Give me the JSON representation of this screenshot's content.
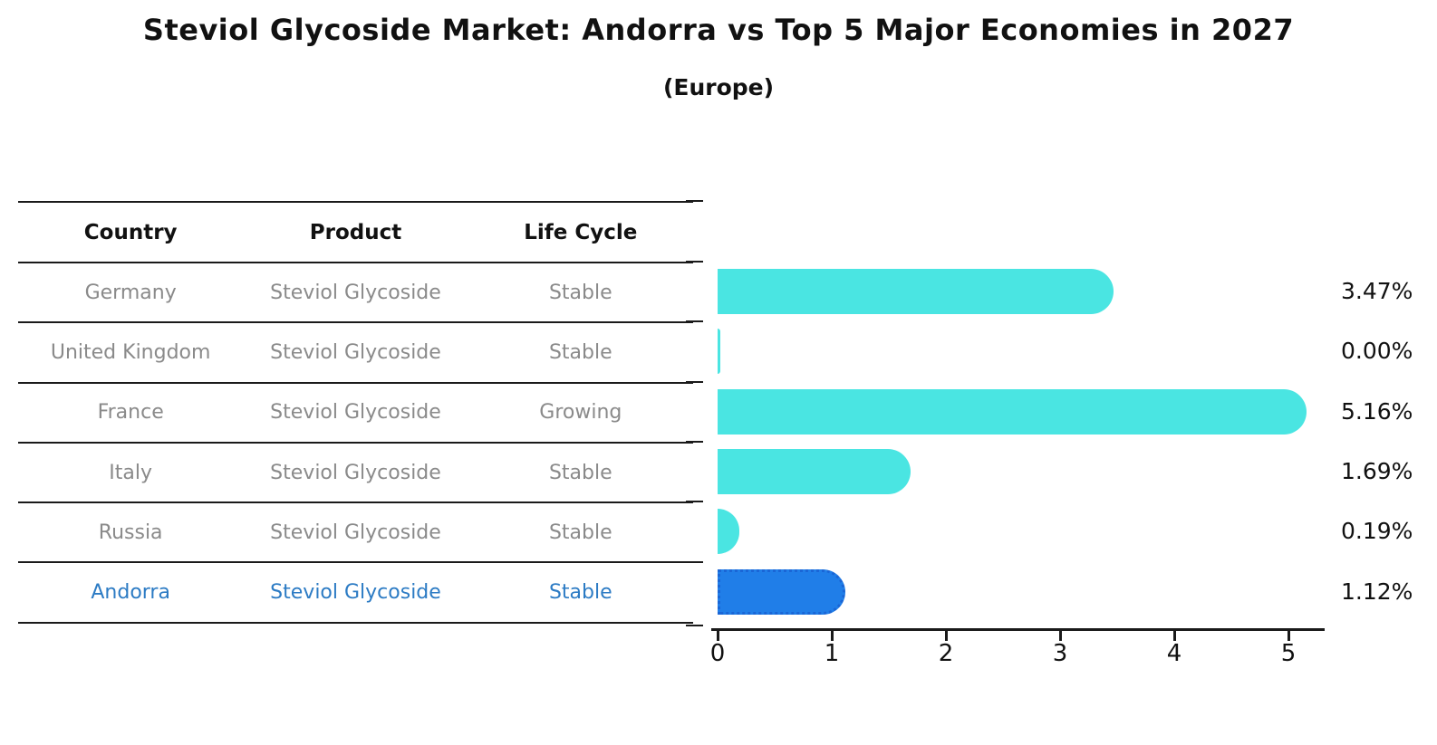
{
  "title": "Steviol Glycoside Market: Andorra vs Top 5 Major Economies in 2027",
  "subtitle": "(Europe)",
  "table": {
    "headers": [
      "Country",
      "Product",
      "Life Cycle"
    ],
    "rows": [
      {
        "country": "Germany",
        "product": "Steviol Glycoside",
        "life_cycle": "Stable",
        "highlighted": false
      },
      {
        "country": "United Kingdom",
        "product": "Steviol Glycoside",
        "life_cycle": "Stable",
        "highlighted": false
      },
      {
        "country": "France",
        "product": "Steviol Glycoside",
        "life_cycle": "Growing",
        "highlighted": false
      },
      {
        "country": "Italy",
        "product": "Steviol Glycoside",
        "life_cycle": "Stable",
        "highlighted": false
      },
      {
        "country": "Russia",
        "product": "Steviol Glycoside",
        "life_cycle": "Stable",
        "highlighted": false
      },
      {
        "country": "Andorra",
        "product": "Steviol Glycoside",
        "life_cycle": "Stable",
        "highlighted": true
      }
    ]
  },
  "chart_data": {
    "type": "bar",
    "orientation": "horizontal",
    "title": "Steviol Glycoside Market: Andorra vs Top 5 Major Economies in 2027",
    "subtitle": "(Europe)",
    "categories": [
      "Germany",
      "United Kingdom",
      "France",
      "Italy",
      "Russia",
      "Andorra"
    ],
    "values": [
      3.47,
      0.0,
      5.16,
      1.69,
      0.19,
      1.12
    ],
    "value_labels": [
      "3.47%",
      "0.00%",
      "5.16%",
      "1.69%",
      "0.19%",
      "1.12%"
    ],
    "xlabel": "",
    "ylabel": "",
    "xlim": [
      0,
      5.5
    ],
    "xticks": [
      0,
      1,
      2,
      3,
      4,
      5
    ],
    "grid": false,
    "legend": false,
    "highlight_category": "Andorra",
    "colors": {
      "bar": "#4AE5E2",
      "highlight_bar": "#207EE8",
      "highlight_border": "#1A66D6",
      "highlight_text": "#2C7BC4",
      "text": "#111111",
      "muted_text": "#8a8a8a",
      "line": "#1a1a1a"
    }
  }
}
